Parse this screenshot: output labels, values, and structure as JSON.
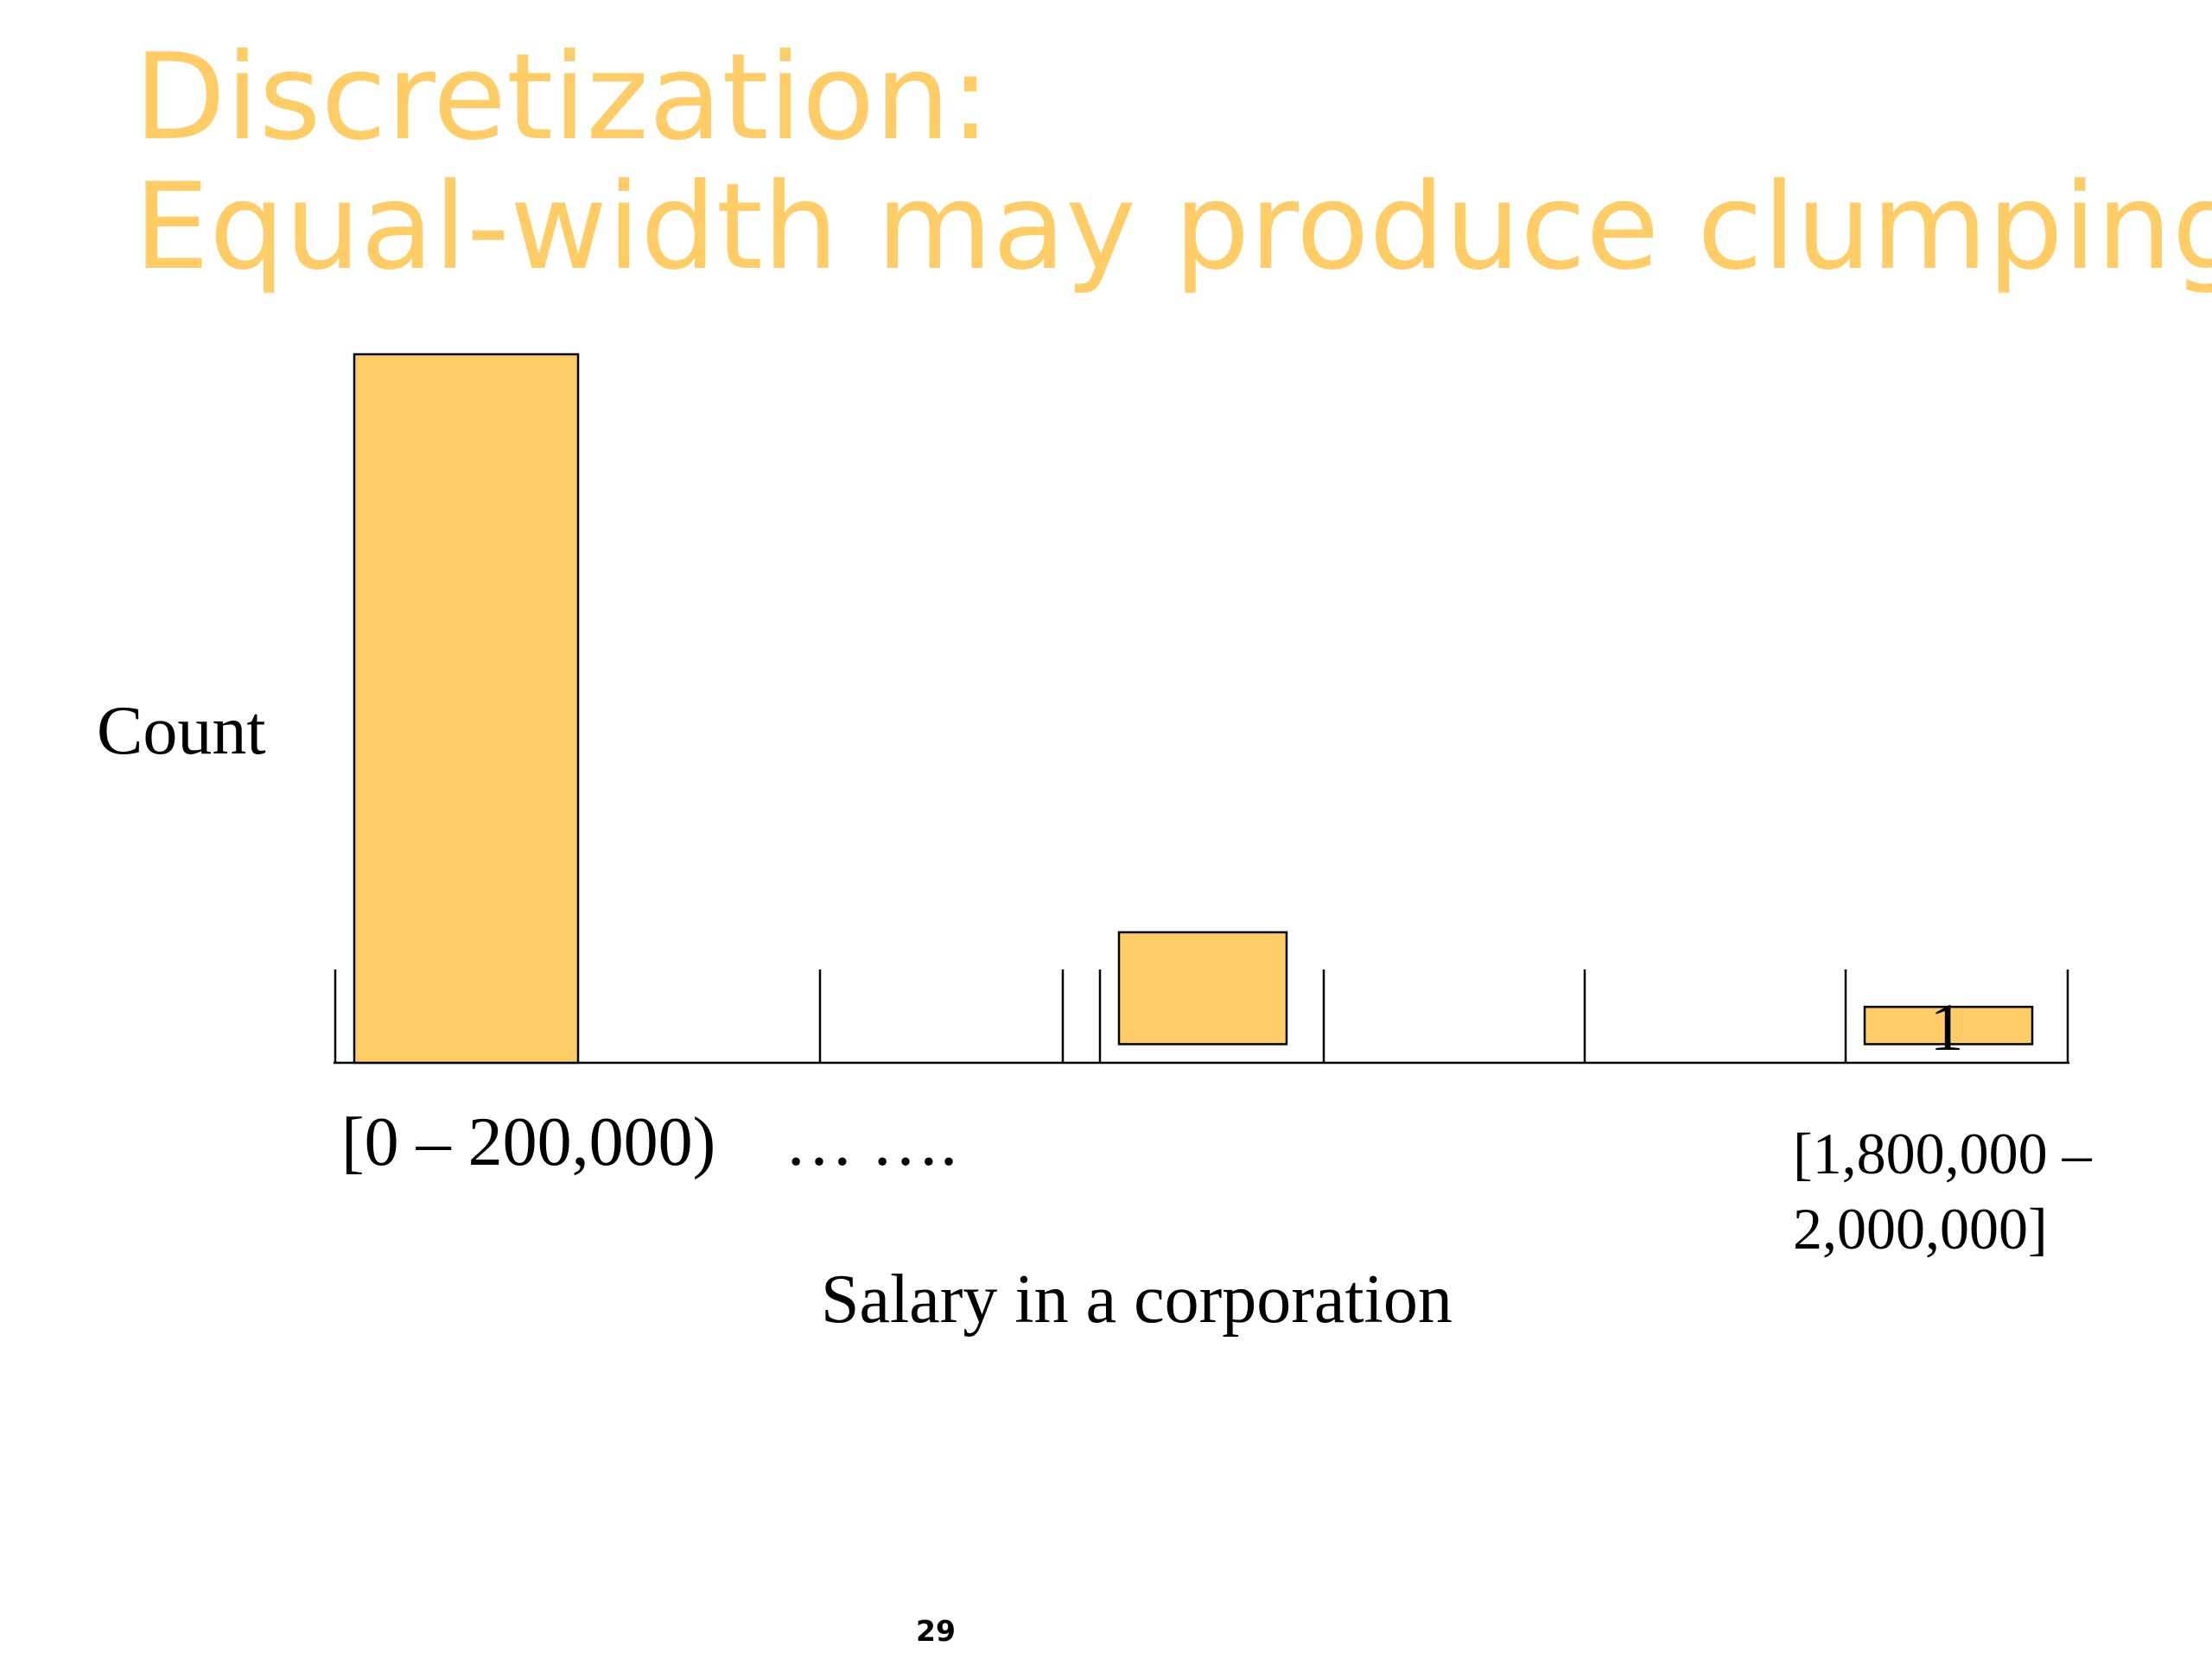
{
  "slide": {
    "title_line1": "Discretization:",
    "title_line2": "Equal-width may produce clumping",
    "page_number": "29",
    "title_color": "#FFCC66"
  },
  "chart_data": {
    "type": "bar",
    "ylabel": "Count",
    "xlabel": "Salary in a corporation",
    "tick_labels": {
      "first": "[0 – 200,000)",
      "ellipsis": "… ….",
      "last_line1": "[1,800,000 –",
      "last_line2": "2,000,000]"
    },
    "bars": [
      {
        "category": "[0 – 200,000)",
        "value": 19
      },
      {
        "category": "",
        "value": 3,
        "baseline": 0.5
      },
      {
        "category": "[1,800,000 – 2,000,000]",
        "value": 1,
        "baseline": 0.5,
        "label": "1"
      }
    ],
    "ylim": [
      0,
      19
    ],
    "bar_color": "#FFCC66",
    "grid": false
  }
}
